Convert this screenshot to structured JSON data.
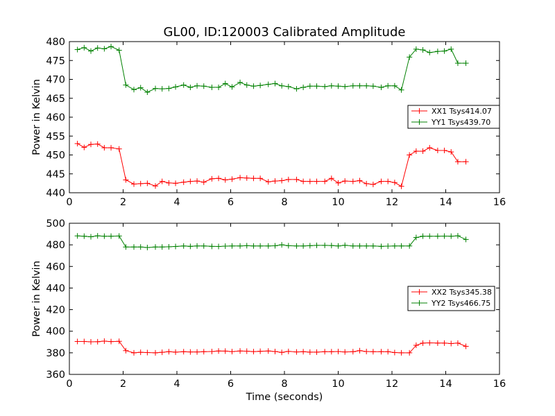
{
  "chart_data": {
    "title": "GL00, ID:120003 Calibrated Amplitude",
    "xlabel": "Time (seconds)",
    "panels": [
      {
        "type": "line",
        "ylabel": "Power in Kelvin",
        "xlim": [
          0,
          16
        ],
        "ylim": [
          440,
          480
        ],
        "xticks": [
          0,
          2,
          4,
          6,
          8,
          10,
          12,
          14,
          16
        ],
        "yticks": [
          440,
          445,
          450,
          455,
          460,
          465,
          470,
          475,
          480
        ],
        "legend_position": "right",
        "series": [
          {
            "name": "XX1 Tsys414.07",
            "color": "#ff0000",
            "x": [
              0.3,
              0.55,
              0.8,
              1.05,
              1.3,
              1.55,
              1.85,
              2.1,
              2.4,
              2.65,
              2.9,
              3.2,
              3.45,
              3.7,
              3.95,
              4.25,
              4.5,
              4.75,
              5.0,
              5.3,
              5.55,
              5.8,
              6.05,
              6.35,
              6.6,
              6.85,
              7.1,
              7.4,
              7.65,
              7.9,
              8.15,
              8.45,
              8.7,
              8.95,
              9.2,
              9.5,
              9.75,
              10.0,
              10.25,
              10.55,
              10.8,
              11.05,
              11.3,
              11.6,
              11.85,
              12.1,
              12.35,
              12.65,
              12.9,
              13.15,
              13.4,
              13.7,
              13.95,
              14.2,
              14.45,
              14.75
            ],
            "values": [
              453.0,
              452.0,
              452.8,
              452.9,
              451.9,
              451.9,
              451.6,
              443.4,
              442.3,
              442.4,
              442.5,
              441.8,
              443.0,
              442.6,
              442.5,
              442.8,
              443.0,
              443.1,
              442.8,
              443.7,
              443.8,
              443.4,
              443.6,
              444.0,
              443.9,
              443.8,
              443.8,
              442.9,
              443.1,
              443.2,
              443.5,
              443.5,
              443.0,
              443.0,
              443.0,
              443.0,
              443.8,
              442.6,
              443.1,
              443.0,
              443.2,
              442.4,
              442.2,
              443.0,
              443.0,
              442.7,
              441.7,
              450.0,
              451.0,
              451.0,
              451.9,
              451.2,
              451.2,
              450.8,
              448.2,
              448.2
            ]
          },
          {
            "name": "YY1 Tsys439.70",
            "color": "#008000",
            "x": [
              0.3,
              0.55,
              0.8,
              1.05,
              1.3,
              1.55,
              1.85,
              2.1,
              2.4,
              2.65,
              2.9,
              3.2,
              3.45,
              3.7,
              3.95,
              4.25,
              4.5,
              4.75,
              5.0,
              5.3,
              5.55,
              5.8,
              6.05,
              6.35,
              6.6,
              6.85,
              7.1,
              7.4,
              7.65,
              7.9,
              8.15,
              8.45,
              8.7,
              8.95,
              9.2,
              9.5,
              9.75,
              10.0,
              10.25,
              10.55,
              10.8,
              11.05,
              11.3,
              11.6,
              11.85,
              12.1,
              12.35,
              12.65,
              12.9,
              13.15,
              13.4,
              13.7,
              13.95,
              14.2,
              14.45,
              14.75
            ],
            "values": [
              477.9,
              478.4,
              477.5,
              478.3,
              478.1,
              478.7,
              477.7,
              468.5,
              467.3,
              467.8,
              466.6,
              467.6,
              467.5,
              467.6,
              468.0,
              468.5,
              467.9,
              468.3,
              468.2,
              467.9,
              467.9,
              468.9,
              468.0,
              469.2,
              468.5,
              468.2,
              468.4,
              468.7,
              468.9,
              468.3,
              468.1,
              467.5,
              467.9,
              468.2,
              468.2,
              468.1,
              468.3,
              468.2,
              468.1,
              468.3,
              468.3,
              468.3,
              468.2,
              467.9,
              468.3,
              468.3,
              467.2,
              475.9,
              478.0,
              477.8,
              477.1,
              477.4,
              477.5,
              478.0,
              474.3,
              474.3
            ]
          }
        ]
      },
      {
        "type": "line",
        "ylabel": "Power in Kelvin",
        "xlim": [
          0,
          16
        ],
        "ylim": [
          360,
          500
        ],
        "xticks": [
          0,
          2,
          4,
          6,
          8,
          10,
          12,
          14,
          16
        ],
        "yticks": [
          360,
          380,
          400,
          420,
          440,
          460,
          480,
          500
        ],
        "legend_position": "right",
        "series": [
          {
            "name": "XX2 Tsys345.38",
            "color": "#ff0000",
            "x": [
              0.3,
              0.55,
              0.8,
              1.05,
              1.3,
              1.55,
              1.85,
              2.1,
              2.4,
              2.65,
              2.9,
              3.2,
              3.45,
              3.7,
              3.95,
              4.25,
              4.5,
              4.75,
              5.0,
              5.3,
              5.55,
              5.8,
              6.05,
              6.35,
              6.6,
              6.85,
              7.1,
              7.4,
              7.65,
              7.9,
              8.15,
              8.45,
              8.7,
              8.95,
              9.2,
              9.5,
              9.75,
              10.0,
              10.25,
              10.55,
              10.8,
              11.05,
              11.3,
              11.6,
              11.85,
              12.1,
              12.35,
              12.65,
              12.9,
              13.15,
              13.4,
              13.7,
              13.95,
              14.2,
              14.45,
              14.75
            ],
            "values": [
              390.5,
              390.5,
              390.2,
              390.3,
              390.8,
              390.4,
              390.7,
              382.0,
              380.0,
              380.5,
              380.2,
              380.0,
              380.5,
              381.0,
              380.6,
              381.0,
              380.8,
              380.8,
              381.0,
              381.2,
              381.7,
              381.6,
              381.1,
              381.7,
              381.5,
              381.1,
              381.4,
              381.7,
              381.2,
              380.4,
              381.3,
              380.8,
              381.0,
              380.6,
              380.6,
              381.0,
              381.0,
              381.2,
              380.8,
              381.0,
              382.0,
              381.2,
              381.0,
              381.0,
              381.0,
              380.2,
              380.0,
              380.0,
              387.0,
              389.0,
              389.2,
              389.0,
              389.0,
              388.6,
              389.0,
              386.0
            ]
          },
          {
            "name": "YY2 Tsys466.75",
            "color": "#008000",
            "x": [
              0.3,
              0.55,
              0.8,
              1.05,
              1.3,
              1.55,
              1.85,
              2.1,
              2.4,
              2.65,
              2.9,
              3.2,
              3.45,
              3.7,
              3.95,
              4.25,
              4.5,
              4.75,
              5.0,
              5.3,
              5.55,
              5.8,
              6.05,
              6.35,
              6.6,
              6.85,
              7.1,
              7.4,
              7.65,
              7.9,
              8.15,
              8.45,
              8.7,
              8.95,
              9.2,
              9.5,
              9.75,
              10.0,
              10.25,
              10.55,
              10.8,
              11.05,
              11.3,
              11.6,
              11.85,
              12.1,
              12.35,
              12.65,
              12.9,
              13.15,
              13.4,
              13.7,
              13.95,
              14.2,
              14.45,
              14.75
            ],
            "values": [
              488.3,
              488.0,
              487.5,
              488.4,
              488.0,
              488.0,
              488.2,
              478.0,
              478.0,
              478.0,
              477.5,
              478.0,
              478.0,
              478.2,
              478.5,
              479.0,
              478.6,
              479.0,
              479.0,
              478.6,
              478.5,
              478.8,
              479.0,
              479.0,
              479.2,
              479.0,
              479.0,
              479.0,
              479.1,
              480.0,
              479.2,
              479.0,
              479.0,
              479.2,
              479.5,
              479.5,
              479.4,
              479.0,
              479.6,
              479.0,
              479.0,
              479.0,
              479.0,
              478.6,
              478.8,
              479.0,
              479.0,
              479.0,
              486.8,
              488.0,
              488.0,
              488.0,
              488.1,
              488.0,
              488.4,
              485.0
            ]
          }
        ]
      }
    ]
  }
}
